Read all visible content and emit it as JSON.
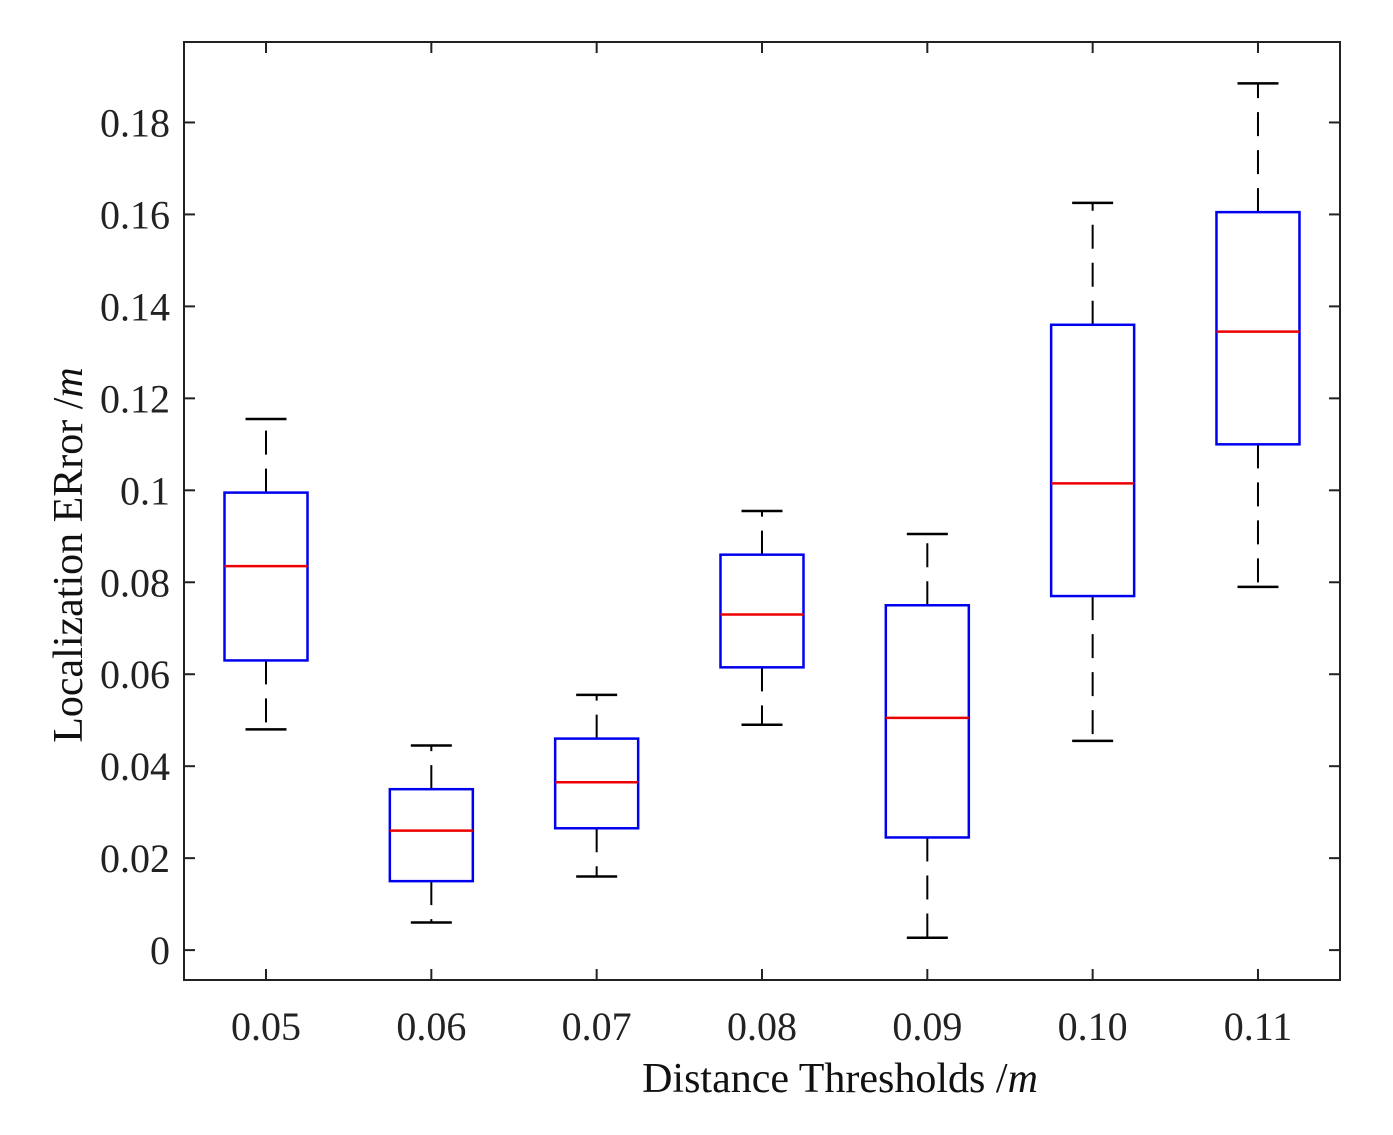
{
  "chart_data": {
    "type": "box",
    "xlabel_text": "Distance Thresholds /",
    "xlabel_unit": "m",
    "ylabel_text": "Localization ERror /",
    "ylabel_unit": "m",
    "categories": [
      "0.05",
      "0.06",
      "0.07",
      "0.08",
      "0.09",
      "0.10",
      "0.11"
    ],
    "ylim": [
      -0.0065,
      0.1975
    ],
    "yticks": [
      0,
      0.02,
      0.04,
      0.06,
      0.08,
      0.1,
      0.12,
      0.14,
      0.16,
      0.18
    ],
    "ytick_labels": [
      "0",
      "0.02",
      "0.04",
      "0.06",
      "0.08",
      "0.1",
      "0.12",
      "0.14",
      "0.16",
      "0.18"
    ],
    "boxes": [
      {
        "category": "0.05",
        "whisker_low": 0.048,
        "q1": 0.063,
        "median": 0.0835,
        "q3": 0.0995,
        "whisker_high": 0.1155
      },
      {
        "category": "0.06",
        "whisker_low": 0.006,
        "q1": 0.015,
        "median": 0.026,
        "q3": 0.035,
        "whisker_high": 0.0445
      },
      {
        "category": "0.07",
        "whisker_low": 0.016,
        "q1": 0.0265,
        "median": 0.0365,
        "q3": 0.046,
        "whisker_high": 0.0555
      },
      {
        "category": "0.08",
        "whisker_low": 0.049,
        "q1": 0.0615,
        "median": 0.073,
        "q3": 0.086,
        "whisker_high": 0.0955
      },
      {
        "category": "0.09",
        "whisker_low": 0.0027,
        "q1": 0.0245,
        "median": 0.0505,
        "q3": 0.075,
        "whisker_high": 0.0905
      },
      {
        "category": "0.10",
        "whisker_low": 0.0455,
        "q1": 0.077,
        "median": 0.1015,
        "q3": 0.136,
        "whisker_high": 0.1625
      },
      {
        "category": "0.11",
        "whisker_low": 0.079,
        "q1": 0.11,
        "median": 0.1345,
        "q3": 0.1605,
        "whisker_high": 0.1885
      }
    ],
    "box_color": "#0000ee",
    "median_color": "#ee0000",
    "whisker_color": "#000000",
    "grid": false,
    "legend": "none"
  }
}
